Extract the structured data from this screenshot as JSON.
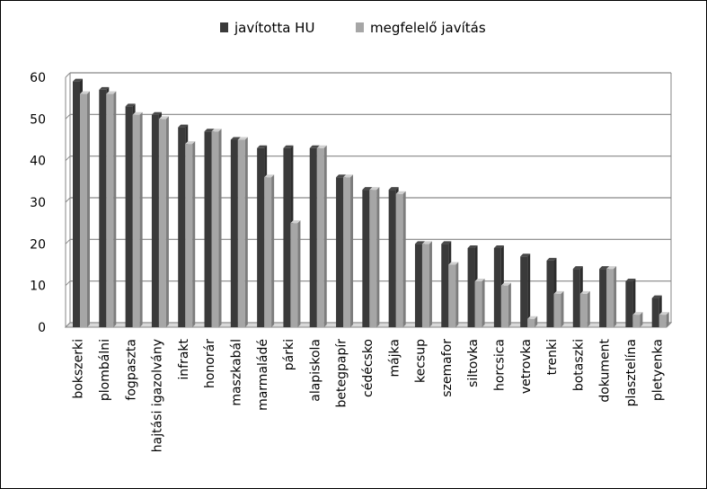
{
  "chart_data": {
    "type": "bar",
    "categories": [
      "bokszerki",
      "plombálni",
      "fogpaszta",
      "hajtási igazolvány",
      "infrakt",
      "honorár",
      "maszkabál",
      "marmaládé",
      "párki",
      "alapiskola",
      "betegpapír",
      "cédécsko",
      "májka",
      "kecsup",
      "szemafor",
      "siltovka",
      "horcsica",
      "vetrovka",
      "trenki",
      "botaszki",
      "dokument",
      "plasztelína",
      "pletyenka"
    ],
    "series": [
      {
        "name": "javította HU",
        "color": "#3a3a3a",
        "values": [
          59,
          57,
          53,
          51,
          48,
          47,
          45,
          43,
          43,
          43,
          36,
          33,
          33,
          20,
          20,
          19,
          19,
          17,
          16,
          14,
          14,
          11,
          7
        ]
      },
      {
        "name": "megfelelő javítás",
        "color": "#a6a6a6",
        "values": [
          56,
          56,
          51,
          50,
          44,
          47,
          45,
          36,
          25,
          43,
          36,
          33,
          32,
          20,
          15,
          11,
          10,
          2,
          8,
          8,
          14,
          3,
          3
        ]
      }
    ],
    "y_ticks": [
      "0",
      "10",
      "20",
      "30",
      "40",
      "50",
      "60"
    ],
    "ylim": [
      0,
      60
    ],
    "grid": true,
    "legend_position": "top-center",
    "colors": {
      "grid": "#868686",
      "axis": "#868686",
      "floor": "#d9d9d9"
    }
  }
}
